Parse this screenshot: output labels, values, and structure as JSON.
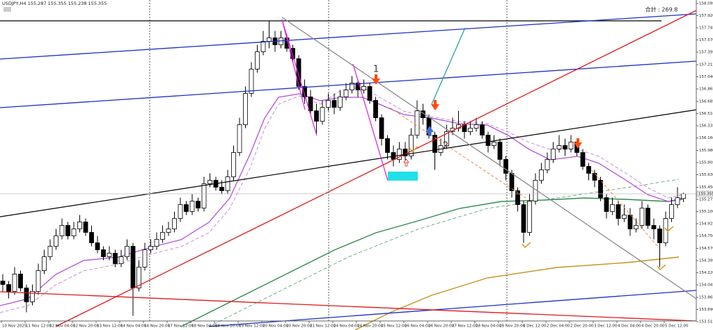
{
  "chart_data": {
    "type": "candlestick",
    "title": "USDJPY,H4  155.287 155.355 155.238 155.355",
    "total_label": "合計 : 269.8",
    "wave_labels": [
      "1",
      "2"
    ],
    "current_price": 155.355,
    "up_color": "#ffffff",
    "down_color": "#000000",
    "ylim": [
      153.515,
      158.095
    ],
    "yticks": [
      158.095,
      {
        "value": 157.92,
        "label": "157.920"
      },
      157.745,
      {
        "value": 157.57,
        "label": "157.570"
      },
      157.395,
      157.215,
      {
        "value": 157.04,
        "label": "157.040"
      },
      156.865,
      156.685,
      {
        "value": 156.51,
        "label": "156.510"
      },
      156.335,
      {
        "value": 156.16,
        "label": "156.160"
      },
      {
        "value": 155.98,
        "label": "155.980"
      },
      155.805,
      {
        "value": 155.63,
        "label": "155.630"
      },
      {
        "value": 155.45,
        "label": "155.450"
      },
      155.275,
      {
        "value": 155.1,
        "label": "155.100"
      },
      154.925,
      {
        "value": 154.75,
        "label": "154.750"
      },
      {
        "value": 154.57,
        "label": "154.570"
      },
      154.395,
      {
        "value": 154.22,
        "label": "154.220"
      },
      154.045,
      153.865,
      {
        "value": 153.69,
        "label": "153.690"
      },
      153.515
    ],
    "time_labels": [
      "10 Nov 2025",
      "11 Nov 12:00",
      "12 Nov 04:00",
      "12 Nov 20:00",
      "13 Nov 12:00",
      "14 Nov 04:00",
      "14 Nov 20:00",
      "17 Nov 12:00",
      "18 Nov 04:00",
      "18 Nov 20:00",
      "19 Nov 12:00",
      "20 Nov 04:00",
      "20 Nov 20:00",
      "21 Nov 12:00",
      "24 Nov 04:00",
      "24 Nov 20:00",
      "25 Nov 12:00",
      "26 Nov 04:00",
      "26 Nov 20:00",
      "27 Nov 12:00",
      "28 Nov 04:00",
      "28 Nov 20:00",
      "1 Dec 12:00",
      "2 Dec 04:00",
      "2 Dec 20:00",
      "3 Dec 12:00",
      "4 Dec 04:00",
      "4 Dec 20:00",
      "5 Dec 12:00"
    ],
    "close": [
      154.05,
      153.95,
      154.2,
      154.0,
      153.8,
      153.95,
      154.25,
      154.45,
      154.6,
      154.75,
      154.9,
      154.75,
      154.85,
      154.95,
      154.8,
      154.65,
      154.55,
      154.45,
      154.5,
      154.35,
      154.45,
      154.6,
      154.0,
      154.3,
      154.55,
      154.6,
      154.7,
      154.8,
      154.85,
      155.0,
      155.2,
      155.1,
      155.25,
      155.15,
      155.5,
      155.55,
      155.45,
      155.4,
      155.6,
      155.95,
      156.35,
      156.8,
      157.15,
      157.4,
      157.55,
      157.6,
      157.5,
      157.6,
      157.45,
      157.3,
      156.9,
      156.75,
      156.55,
      156.4,
      156.6,
      156.7,
      156.6,
      156.75,
      156.85,
      156.95,
      156.85,
      156.9,
      156.7,
      156.45,
      156.15,
      155.95,
      155.85,
      156.0,
      155.9,
      156.2,
      156.55,
      156.45,
      156.2,
      155.95,
      156.05,
      156.25,
      156.3,
      156.35,
      156.25,
      156.3,
      156.35,
      156.2,
      156.05,
      156.1,
      155.85,
      155.65,
      155.4,
      155.2,
      154.8,
      155.25,
      155.55,
      155.7,
      155.85,
      156.0,
      156.05,
      156.0,
      156.1,
      155.95,
      155.75,
      155.65,
      155.55,
      155.3,
      155.1,
      155.2,
      155.0,
      155.05,
      154.85,
      154.9,
      155.15,
      154.9,
      154.85,
      154.65,
      155.0,
      155.2,
      155.3,
      155.355
    ],
    "open": [
      154.1,
      154.05,
      153.95,
      154.2,
      154.0,
      153.8,
      153.95,
      154.25,
      154.45,
      154.6,
      154.75,
      154.9,
      154.75,
      154.85,
      154.95,
      154.8,
      154.65,
      154.55,
      154.45,
      154.5,
      154.35,
      154.45,
      154.6,
      154.0,
      154.3,
      154.55,
      154.6,
      154.7,
      154.8,
      154.85,
      155.0,
      155.2,
      155.1,
      155.25,
      155.15,
      155.5,
      155.55,
      155.45,
      155.4,
      155.6,
      155.95,
      156.35,
      156.8,
      157.15,
      157.4,
      157.55,
      157.6,
      157.5,
      157.6,
      157.45,
      157.3,
      156.9,
      156.75,
      156.55,
      156.4,
      156.6,
      156.7,
      156.6,
      156.75,
      156.85,
      156.95,
      156.85,
      156.9,
      156.7,
      156.45,
      156.15,
      155.95,
      155.85,
      156.0,
      155.9,
      156.2,
      156.55,
      156.45,
      156.2,
      155.95,
      156.05,
      156.25,
      156.3,
      156.35,
      156.25,
      156.3,
      156.35,
      156.2,
      156.05,
      156.1,
      155.85,
      155.65,
      155.4,
      155.2,
      154.8,
      155.25,
      155.55,
      155.7,
      155.85,
      156.0,
      156.05,
      156.0,
      156.1,
      155.95,
      155.75,
      155.65,
      155.55,
      155.3,
      155.1,
      155.2,
      155.0,
      155.05,
      154.85,
      154.9,
      155.15,
      154.9,
      154.85,
      154.65,
      155.0,
      155.2,
      155.287
    ],
    "high": [
      154.2,
      154.1,
      154.3,
      154.25,
      154.05,
      154.05,
      154.35,
      154.55,
      154.7,
      154.85,
      155.0,
      154.95,
      154.95,
      155.05,
      155.0,
      154.9,
      154.75,
      154.6,
      154.6,
      154.55,
      154.55,
      154.7,
      154.65,
      154.4,
      154.65,
      154.7,
      154.8,
      154.9,
      154.95,
      155.1,
      155.3,
      155.25,
      155.35,
      155.3,
      155.6,
      155.65,
      155.6,
      155.55,
      155.7,
      156.05,
      156.45,
      156.9,
      157.25,
      157.5,
      157.7,
      157.85,
      157.7,
      157.7,
      157.65,
      157.5,
      157.35,
      157.0,
      156.85,
      156.65,
      156.7,
      156.8,
      156.8,
      156.85,
      156.95,
      157.05,
      157.0,
      157.0,
      156.95,
      156.75,
      156.5,
      156.2,
      156.05,
      156.1,
      156.1,
      156.3,
      156.7,
      156.65,
      156.5,
      156.25,
      156.15,
      156.35,
      156.45,
      156.55,
      156.4,
      156.4,
      156.45,
      156.4,
      156.25,
      156.2,
      156.15,
      155.9,
      155.7,
      155.45,
      155.25,
      155.35,
      155.65,
      155.8,
      155.95,
      156.1,
      156.2,
      156.15,
      156.2,
      156.15,
      156.0,
      155.8,
      155.7,
      155.6,
      155.35,
      155.3,
      155.25,
      155.2,
      155.15,
      155.0,
      155.25,
      155.2,
      155.0,
      154.9,
      155.1,
      155.3,
      155.45,
      155.37
    ],
    "low": [
      153.95,
      153.85,
      153.9,
      153.95,
      153.65,
      153.75,
      153.9,
      154.2,
      154.4,
      154.55,
      154.7,
      154.7,
      154.7,
      154.8,
      154.75,
      154.6,
      154.5,
      154.4,
      154.4,
      154.3,
      154.3,
      154.4,
      153.6,
      153.95,
      154.25,
      154.5,
      154.55,
      154.65,
      154.75,
      154.8,
      154.95,
      155.05,
      155.05,
      155.1,
      155.1,
      155.45,
      155.4,
      155.35,
      155.35,
      155.55,
      155.9,
      156.3,
      156.75,
      157.1,
      157.35,
      157.45,
      157.4,
      157.45,
      157.4,
      157.25,
      156.85,
      156.65,
      156.5,
      156.2,
      156.35,
      156.55,
      156.5,
      156.55,
      156.7,
      156.8,
      156.75,
      156.8,
      156.65,
      156.4,
      156.05,
      155.85,
      155.75,
      155.8,
      155.8,
      155.85,
      156.15,
      156.35,
      156.15,
      155.7,
      155.9,
      156.0,
      156.2,
      156.25,
      156.15,
      156.2,
      156.25,
      156.15,
      155.95,
      156.0,
      155.75,
      155.55,
      155.3,
      155.1,
      154.65,
      154.75,
      155.2,
      155.5,
      155.65,
      155.8,
      155.95,
      155.9,
      155.95,
      155.9,
      155.7,
      155.55,
      155.45,
      155.25,
      155.0,
      155.05,
      154.9,
      154.95,
      154.75,
      154.8,
      154.85,
      154.85,
      154.7,
      154.3,
      154.6,
      154.95,
      155.15,
      155.238
    ]
  }
}
